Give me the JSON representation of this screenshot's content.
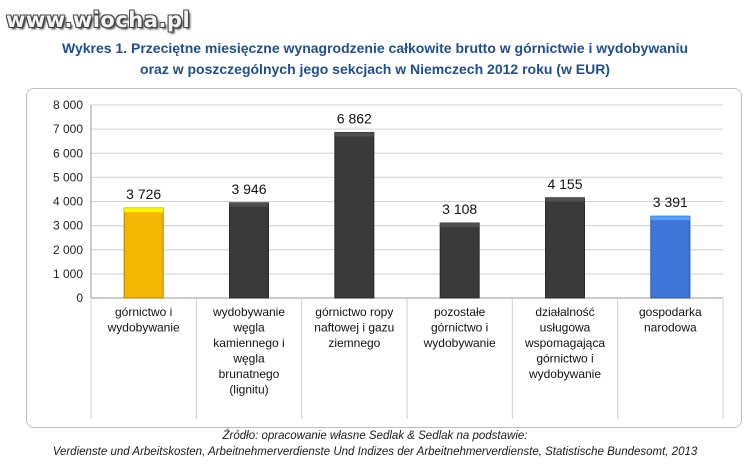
{
  "watermark": "www.wiocha.pl",
  "chart_data": {
    "type": "bar",
    "title": "Wykres 1. Przeciętne miesięczne wynagrodzenie całkowite brutto w górnictwie i wydobywaniu",
    "subtitle": "oraz w poszczególnych jego sekcjach w Niemczech 2012 roku (w EUR)",
    "categories": [
      [
        "górnictwo i",
        "wydobywanie"
      ],
      [
        "wydobywanie",
        "węgla",
        "kamiennego i",
        "węgla",
        "brunatnego",
        "(lignitu)"
      ],
      [
        "górnictwo ropy",
        "naftowej i gazu",
        "ziemnego"
      ],
      [
        "pozostałe",
        "górnictwo i",
        "wydobywanie"
      ],
      [
        "działalność",
        "usługowa",
        "wspomagająca",
        "górnictwo i",
        "wydobywanie"
      ],
      [
        "gospodarka",
        "narodowa"
      ]
    ],
    "values": [
      3726,
      3946,
      6862,
      3108,
      4155,
      3391
    ],
    "value_labels": [
      "3 726",
      "3 946",
      "6 862",
      "3 108",
      "4 155",
      "3 391"
    ],
    "bar_colors": [
      "#f5b800",
      "#3a3a3a",
      "#3a3a3a",
      "#3a3a3a",
      "#3a3a3a",
      "#3f76d9"
    ],
    "ylim": [
      0,
      8000
    ],
    "yticks": [
      0,
      1000,
      2000,
      3000,
      4000,
      5000,
      6000,
      7000,
      8000
    ],
    "ytick_labels": [
      "0",
      "1 000",
      "2 000",
      "3 000",
      "4 000",
      "5 000",
      "6 000",
      "7 000",
      "8 000"
    ],
    "grid": true,
    "xlabel": "",
    "ylabel": ""
  },
  "source": {
    "line1": "Źródło: opracowanie własne Sedlak & Sedlak na podstawie:",
    "line2": "Verdienste und Arbeitskosten, Arbeitnehmerverdienste Und Indizes der Arbeitnehmerverdienste, Statistische Bundesomt, 2013"
  }
}
